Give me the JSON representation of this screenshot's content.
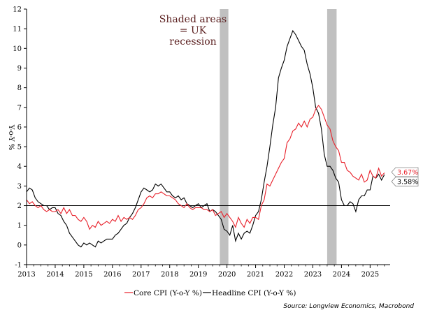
{
  "chart_data": {
    "type": "line",
    "ylabel": "Y-o-Y %",
    "ylim": [
      -1,
      12
    ],
    "yticks": [
      "-1",
      "0",
      "1",
      "2",
      "3",
      "4",
      "5",
      "6",
      "7",
      "8",
      "9",
      "10",
      "11",
      "12"
    ],
    "xlim": [
      2013.0,
      2025.7
    ],
    "xticks": [
      "2013",
      "2014",
      "2015",
      "2016",
      "2017",
      "2018",
      "2019",
      "2020",
      "2021",
      "2022",
      "2023",
      "2024",
      "2025"
    ],
    "reference_line": 2,
    "annotation": [
      "Shaded areas",
      "= UK",
      "recession"
    ],
    "recessions": [
      [
        2019.75,
        2020.05
      ],
      [
        2023.5,
        2023.83
      ]
    ],
    "source": "Source: Longview Economics, Macrobond",
    "colors": {
      "core": "#e8202a",
      "headline": "#000000",
      "shade": "#c0c0c0"
    },
    "series": [
      {
        "name": "Core CPI (Y-o-Y %)",
        "key": "core",
        "end_label": "3.67%",
        "points": [
          [
            2013.0,
            2.3
          ],
          [
            2013.1,
            2.1
          ],
          [
            2013.2,
            2.2
          ],
          [
            2013.3,
            2.0
          ],
          [
            2013.4,
            1.9
          ],
          [
            2013.5,
            2.0
          ],
          [
            2013.6,
            1.8
          ],
          [
            2013.7,
            1.7
          ],
          [
            2013.8,
            1.8
          ],
          [
            2013.9,
            1.7
          ],
          [
            2014.0,
            1.7
          ],
          [
            2014.1,
            1.8
          ],
          [
            2014.2,
            1.6
          ],
          [
            2014.3,
            1.9
          ],
          [
            2014.4,
            1.6
          ],
          [
            2014.5,
            1.8
          ],
          [
            2014.6,
            1.5
          ],
          [
            2014.7,
            1.5
          ],
          [
            2014.8,
            1.3
          ],
          [
            2014.9,
            1.2
          ],
          [
            2015.0,
            1.4
          ],
          [
            2015.1,
            1.2
          ],
          [
            2015.2,
            0.8
          ],
          [
            2015.3,
            1.0
          ],
          [
            2015.4,
            0.9
          ],
          [
            2015.5,
            1.2
          ],
          [
            2015.6,
            1.0
          ],
          [
            2015.7,
            1.1
          ],
          [
            2015.8,
            1.2
          ],
          [
            2015.9,
            1.1
          ],
          [
            2016.0,
            1.3
          ],
          [
            2016.1,
            1.2
          ],
          [
            2016.2,
            1.5
          ],
          [
            2016.3,
            1.2
          ],
          [
            2016.4,
            1.4
          ],
          [
            2016.5,
            1.3
          ],
          [
            2016.6,
            1.4
          ],
          [
            2016.7,
            1.3
          ],
          [
            2016.8,
            1.5
          ],
          [
            2016.9,
            1.8
          ],
          [
            2017.0,
            1.9
          ],
          [
            2017.1,
            2.1
          ],
          [
            2017.2,
            2.4
          ],
          [
            2017.3,
            2.5
          ],
          [
            2017.4,
            2.4
          ],
          [
            2017.5,
            2.6
          ],
          [
            2017.6,
            2.6
          ],
          [
            2017.7,
            2.7
          ],
          [
            2017.8,
            2.6
          ],
          [
            2017.9,
            2.5
          ],
          [
            2018.0,
            2.5
          ],
          [
            2018.1,
            2.4
          ],
          [
            2018.2,
            2.3
          ],
          [
            2018.3,
            2.1
          ],
          [
            2018.4,
            2.0
          ],
          [
            2018.5,
            1.9
          ],
          [
            2018.6,
            2.1
          ],
          [
            2018.7,
            1.9
          ],
          [
            2018.8,
            1.8
          ],
          [
            2018.9,
            1.9
          ],
          [
            2019.0,
            1.9
          ],
          [
            2019.1,
            1.9
          ],
          [
            2019.2,
            1.8
          ],
          [
            2019.3,
            1.8
          ],
          [
            2019.4,
            1.7
          ],
          [
            2019.5,
            1.8
          ],
          [
            2019.6,
            1.5
          ],
          [
            2019.7,
            1.6
          ],
          [
            2019.8,
            1.7
          ],
          [
            2019.9,
            1.4
          ],
          [
            2020.0,
            1.6
          ],
          [
            2020.1,
            1.4
          ],
          [
            2020.2,
            1.2
          ],
          [
            2020.3,
            0.9
          ],
          [
            2020.4,
            1.4
          ],
          [
            2020.5,
            1.1
          ],
          [
            2020.6,
            0.9
          ],
          [
            2020.7,
            1.3
          ],
          [
            2020.8,
            1.1
          ],
          [
            2020.9,
            1.4
          ],
          [
            2021.0,
            1.4
          ],
          [
            2021.1,
            1.3
          ],
          [
            2021.2,
            2.0
          ],
          [
            2021.3,
            2.3
          ],
          [
            2021.4,
            3.1
          ],
          [
            2021.5,
            3.0
          ],
          [
            2021.6,
            3.3
          ],
          [
            2021.7,
            3.6
          ],
          [
            2021.8,
            3.9
          ],
          [
            2021.9,
            4.2
          ],
          [
            2022.0,
            4.4
          ],
          [
            2022.1,
            5.2
          ],
          [
            2022.2,
            5.4
          ],
          [
            2022.3,
            5.8
          ],
          [
            2022.4,
            5.9
          ],
          [
            2022.5,
            6.2
          ],
          [
            2022.6,
            6.0
          ],
          [
            2022.7,
            6.3
          ],
          [
            2022.8,
            6.0
          ],
          [
            2022.9,
            6.4
          ],
          [
            2023.0,
            6.5
          ],
          [
            2023.1,
            6.9
          ],
          [
            2023.2,
            7.1
          ],
          [
            2023.3,
            6.9
          ],
          [
            2023.4,
            6.5
          ],
          [
            2023.5,
            6.1
          ],
          [
            2023.6,
            5.9
          ],
          [
            2023.7,
            5.3
          ],
          [
            2023.8,
            5.0
          ],
          [
            2023.9,
            4.8
          ],
          [
            2024.0,
            4.2
          ],
          [
            2024.1,
            4.2
          ],
          [
            2024.2,
            3.8
          ],
          [
            2024.3,
            3.7
          ],
          [
            2024.4,
            3.5
          ],
          [
            2024.5,
            3.4
          ],
          [
            2024.6,
            3.3
          ],
          [
            2024.7,
            3.6
          ],
          [
            2024.8,
            3.2
          ],
          [
            2024.9,
            3.3
          ],
          [
            2025.0,
            3.8
          ],
          [
            2025.1,
            3.5
          ],
          [
            2025.2,
            3.4
          ],
          [
            2025.3,
            3.9
          ],
          [
            2025.4,
            3.5
          ],
          [
            2025.5,
            3.67
          ]
        ]
      },
      {
        "name": "Headline CPI (Y-o-Y %)",
        "key": "headline",
        "end_label": "3.58%",
        "points": [
          [
            2013.0,
            2.7
          ],
          [
            2013.1,
            2.9
          ],
          [
            2013.2,
            2.8
          ],
          [
            2013.3,
            2.4
          ],
          [
            2013.4,
            2.2
          ],
          [
            2013.5,
            2.1
          ],
          [
            2013.6,
            2.0
          ],
          [
            2013.7,
            2.0
          ],
          [
            2013.8,
            1.8
          ],
          [
            2013.9,
            1.9
          ],
          [
            2014.0,
            1.9
          ],
          [
            2014.1,
            1.6
          ],
          [
            2014.2,
            1.5
          ],
          [
            2014.3,
            1.2
          ],
          [
            2014.4,
            1.0
          ],
          [
            2014.5,
            0.6
          ],
          [
            2014.6,
            0.4
          ],
          [
            2014.7,
            0.2
          ],
          [
            2014.8,
            0.0
          ],
          [
            2014.9,
            -0.1
          ],
          [
            2015.0,
            0.1
          ],
          [
            2015.1,
            0.0
          ],
          [
            2015.2,
            0.1
          ],
          [
            2015.3,
            0.0
          ],
          [
            2015.4,
            -0.1
          ],
          [
            2015.5,
            0.2
          ],
          [
            2015.6,
            0.1
          ],
          [
            2015.7,
            0.2
          ],
          [
            2015.8,
            0.3
          ],
          [
            2015.9,
            0.3
          ],
          [
            2016.0,
            0.3
          ],
          [
            2016.1,
            0.5
          ],
          [
            2016.2,
            0.6
          ],
          [
            2016.3,
            0.8
          ],
          [
            2016.4,
            1.0
          ],
          [
            2016.5,
            1.1
          ],
          [
            2016.6,
            1.4
          ],
          [
            2016.7,
            1.6
          ],
          [
            2016.8,
            1.9
          ],
          [
            2016.9,
            2.3
          ],
          [
            2017.0,
            2.7
          ],
          [
            2017.1,
            2.9
          ],
          [
            2017.2,
            2.8
          ],
          [
            2017.3,
            2.7
          ],
          [
            2017.4,
            2.8
          ],
          [
            2017.5,
            3.1
          ],
          [
            2017.6,
            3.0
          ],
          [
            2017.7,
            3.1
          ],
          [
            2017.8,
            2.9
          ],
          [
            2017.9,
            2.7
          ],
          [
            2018.0,
            2.7
          ],
          [
            2018.1,
            2.5
          ],
          [
            2018.2,
            2.4
          ],
          [
            2018.3,
            2.5
          ],
          [
            2018.4,
            2.3
          ],
          [
            2018.5,
            2.4
          ],
          [
            2018.6,
            2.1
          ],
          [
            2018.7,
            2.0
          ],
          [
            2018.8,
            1.9
          ],
          [
            2018.9,
            2.0
          ],
          [
            2019.0,
            2.1
          ],
          [
            2019.1,
            1.9
          ],
          [
            2019.2,
            2.0
          ],
          [
            2019.3,
            2.1
          ],
          [
            2019.4,
            1.7
          ],
          [
            2019.5,
            1.8
          ],
          [
            2019.6,
            1.7
          ],
          [
            2019.7,
            1.5
          ],
          [
            2019.8,
            1.3
          ],
          [
            2019.9,
            0.8
          ],
          [
            2020.0,
            0.7
          ],
          [
            2020.1,
            0.5
          ],
          [
            2020.2,
            1.0
          ],
          [
            2020.3,
            0.2
          ],
          [
            2020.4,
            0.6
          ],
          [
            2020.5,
            0.3
          ],
          [
            2020.6,
            0.6
          ],
          [
            2020.7,
            0.7
          ],
          [
            2020.8,
            0.6
          ],
          [
            2020.9,
            1.0
          ],
          [
            2021.0,
            1.5
          ],
          [
            2021.1,
            1.7
          ],
          [
            2021.2,
            2.3
          ],
          [
            2021.3,
            3.2
          ],
          [
            2021.4,
            4.0
          ],
          [
            2021.5,
            5.0
          ],
          [
            2021.6,
            6.1
          ],
          [
            2021.7,
            7.0
          ],
          [
            2021.8,
            8.5
          ],
          [
            2021.9,
            9.0
          ],
          [
            2022.0,
            9.4
          ],
          [
            2022.1,
            10.1
          ],
          [
            2022.2,
            10.5
          ],
          [
            2022.3,
            10.9
          ],
          [
            2022.4,
            10.7
          ],
          [
            2022.5,
            10.4
          ],
          [
            2022.6,
            10.1
          ],
          [
            2022.7,
            9.9
          ],
          [
            2022.8,
            9.2
          ],
          [
            2022.9,
            8.7
          ],
          [
            2023.0,
            8.0
          ],
          [
            2023.1,
            7.0
          ],
          [
            2023.2,
            6.7
          ],
          [
            2023.3,
            5.9
          ],
          [
            2023.4,
            4.6
          ],
          [
            2023.5,
            4.0
          ],
          [
            2023.6,
            4.0
          ],
          [
            2023.7,
            3.8
          ],
          [
            2023.8,
            3.4
          ],
          [
            2023.9,
            3.2
          ],
          [
            2024.0,
            2.3
          ],
          [
            2024.1,
            2.0
          ],
          [
            2024.2,
            2.0
          ],
          [
            2024.3,
            2.2
          ],
          [
            2024.4,
            2.1
          ],
          [
            2024.5,
            1.7
          ],
          [
            2024.6,
            2.3
          ],
          [
            2024.7,
            2.5
          ],
          [
            2024.8,
            2.5
          ],
          [
            2024.9,
            2.8
          ],
          [
            2025.0,
            2.8
          ],
          [
            2025.1,
            3.5
          ],
          [
            2025.2,
            3.4
          ],
          [
            2025.3,
            3.6
          ],
          [
            2025.4,
            3.3
          ],
          [
            2025.5,
            3.58
          ]
        ]
      }
    ]
  }
}
